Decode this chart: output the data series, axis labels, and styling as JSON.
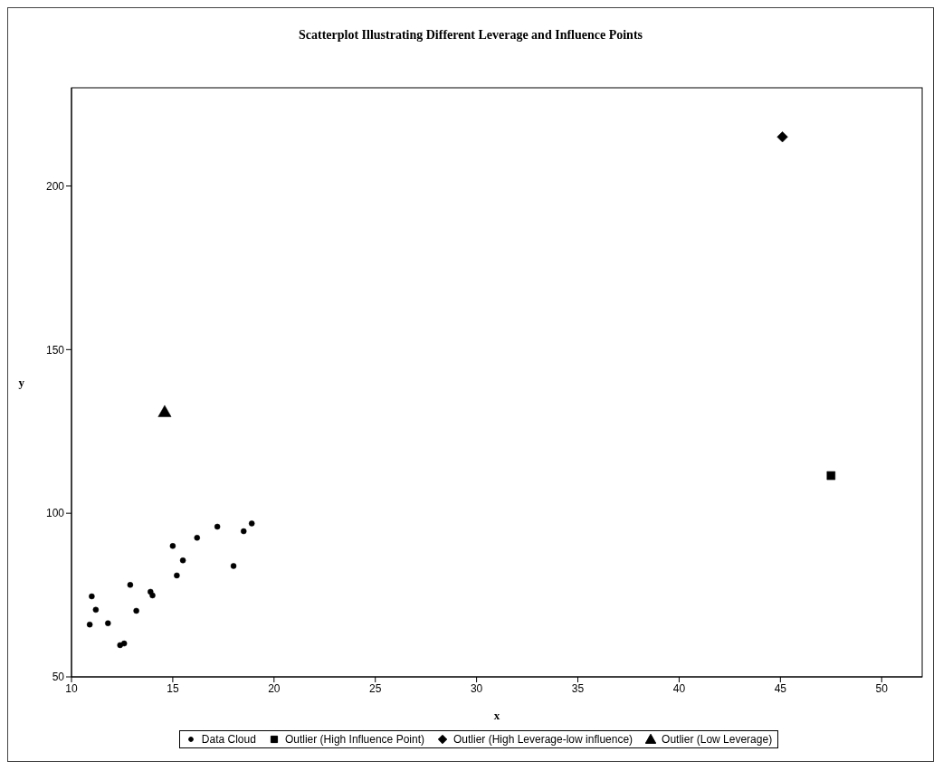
{
  "chart_data": {
    "type": "scatter",
    "title": "Scatterplot Illustrating Different Leverage and Influence Points",
    "xlabel": "x",
    "ylabel": "y",
    "xlim": [
      10,
      52
    ],
    "xticks": [
      10,
      15,
      20,
      25,
      30,
      35,
      40,
      45,
      50
    ],
    "ylim": [
      50,
      230
    ],
    "yticks": [
      50,
      100,
      150,
      200
    ],
    "grid": false,
    "legend": "bottom",
    "series": [
      {
        "name": "Data Cloud",
        "color": "#000000",
        "marker": "circle",
        "x": [
          10.9,
          11,
          11.2,
          11.8,
          12.4,
          12.6,
          12.9,
          13.2,
          13.9,
          14,
          15,
          15.2,
          15.5,
          16.2,
          17.2,
          18,
          18.5,
          18.9
        ],
        "values": [
          66,
          74.6,
          70.5,
          66.4,
          59.7,
          60.2,
          78.1,
          70.2,
          76,
          74.9,
          90,
          81,
          85.6,
          92.5,
          95.9,
          83.9,
          94.5,
          96.9
        ]
      },
      {
        "name": "Outlier (High Influence Point)",
        "color": "#000000",
        "marker": "square",
        "x": [
          47.5
        ],
        "values": [
          111.5
        ]
      },
      {
        "name": "Outlier (High Leverage-low influence)",
        "color": "#000000",
        "marker": "diamond",
        "x": [
          45.1
        ],
        "values": [
          215
        ]
      },
      {
        "name": "Outlier (Low Leverage)",
        "color": "#000000",
        "marker": "triangle",
        "x": [
          14.6
        ],
        "values": [
          131
        ]
      }
    ]
  }
}
